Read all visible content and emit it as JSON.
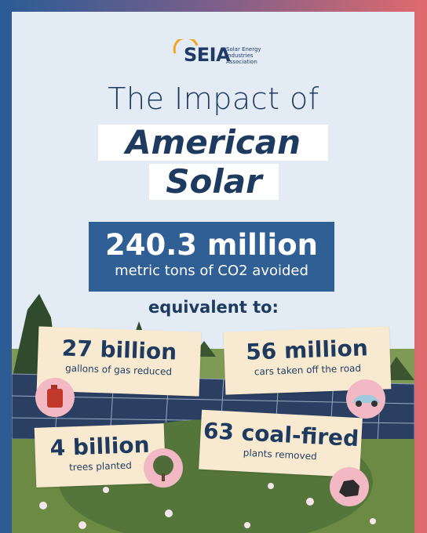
{
  "logo": {
    "name": "SEIA",
    "subtitle": "Solar Energy Industries Association"
  },
  "title": {
    "line1": "The Impact of",
    "line2": "American",
    "line3": "Solar"
  },
  "headline": {
    "value": "240.3 million",
    "label": "metric tons of CO2 avoided"
  },
  "equivalent_heading": "equivalent to:",
  "cards": [
    {
      "value": "27 billion",
      "label": "gallons of gas reduced"
    },
    {
      "value": "56 million",
      "label": "cars taken off the road"
    },
    {
      "value": "4 billion",
      "label": "trees planted"
    },
    {
      "value": "63 coal-fired",
      "label": "plants removed"
    }
  ]
}
